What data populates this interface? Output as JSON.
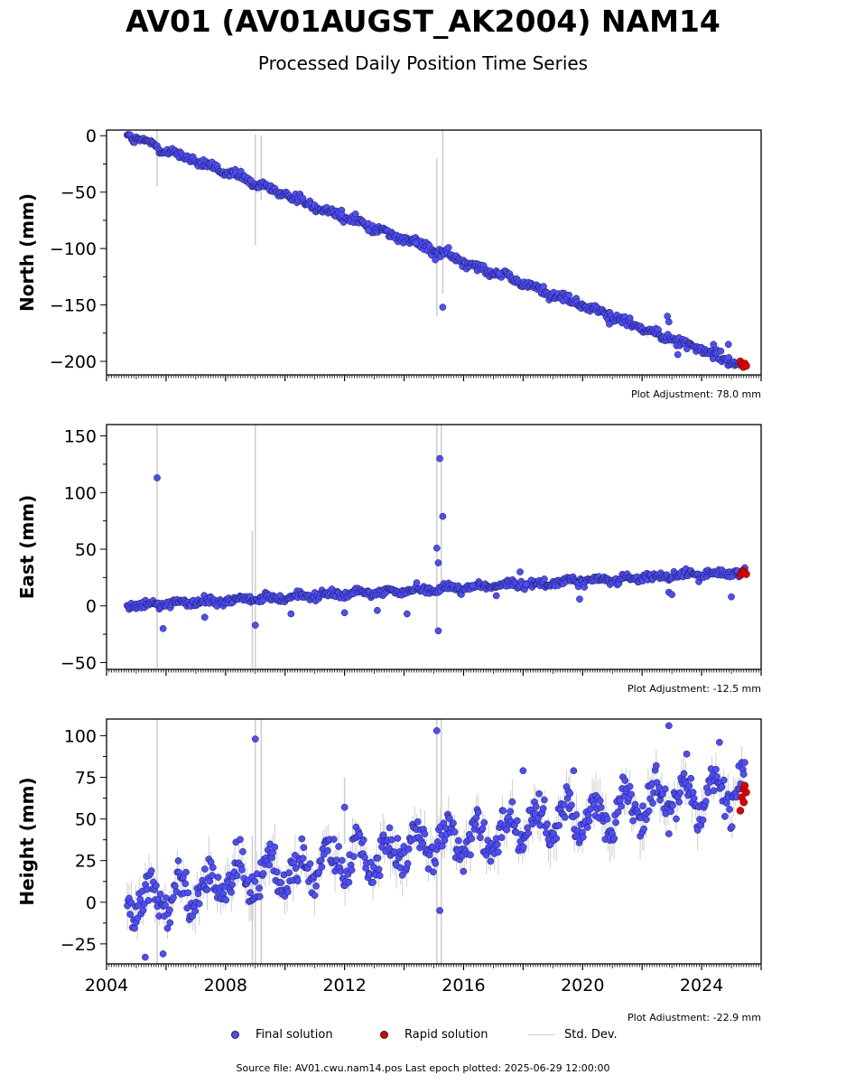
{
  "title": "AV01 (AV01AUGST_AK2004) NAM14",
  "subtitle": "Processed Daily Position Time Series",
  "legend": {
    "final": "Final solution",
    "rapid": "Rapid solution",
    "std": "Std. Dev."
  },
  "colors": {
    "final": "#4d4dff",
    "rapid": "#e00000",
    "std": "#cfcfcf",
    "edge": "#1a1a4a"
  },
  "footer": "Source file: AV01.cwu.nam14.pos  Last epoch plotted: 2025-06-29 12:00:00",
  "chart_data": [
    {
      "type": "scatter",
      "ylabel": "North (mm)",
      "adjustment": "Plot Adjustment: 78.0 mm",
      "xlim": [
        2004.0,
        2026.0
      ],
      "ylim": [
        -212,
        5
      ],
      "yticks": [
        0,
        -50,
        -100,
        -150,
        -200
      ],
      "start": [
        2004.7,
        0
      ],
      "end": [
        2025.45,
        -204
      ],
      "scatter_spread": 3,
      "seasonal_amplitude": 1.5,
      "outliers": [
        [
          2011.9,
          -66
        ],
        [
          2011.9,
          -70
        ],
        [
          2015.3,
          -152
        ],
        [
          2015.05,
          -110
        ],
        [
          2017.2,
          -122
        ],
        [
          2020.9,
          -167
        ],
        [
          2022.9,
          -165
        ],
        [
          2022.85,
          -160
        ],
        [
          2023.2,
          -194
        ],
        [
          2024.9,
          -185
        ],
        [
          2024.4,
          -185
        ],
        [
          2012.8,
          -84
        ],
        [
          2014.4,
          -95
        ]
      ],
      "stddev_spikes": [
        [
          2009.0,
          -97,
          1
        ],
        [
          2009.2,
          -57,
          0.5
        ],
        [
          2005.7,
          -45,
          8
        ],
        [
          2015.1,
          -160,
          -20
        ],
        [
          2015.3,
          -140,
          5
        ]
      ],
      "rapid": [
        [
          2025.3,
          -200
        ],
        [
          2025.35,
          -203
        ],
        [
          2025.4,
          -205
        ],
        [
          2025.45,
          -202
        ],
        [
          2025.5,
          -204
        ]
      ]
    },
    {
      "type": "scatter",
      "ylabel": "East (mm)",
      "adjustment": "Plot Adjustment: -12.5 mm",
      "xlim": [
        2004.0,
        2026.0
      ],
      "ylim": [
        -56,
        160
      ],
      "yticks": [
        150,
        100,
        50,
        0,
        -50
      ],
      "start": [
        2004.7,
        0
      ],
      "end": [
        2025.45,
        30
      ],
      "scatter_spread": 2.5,
      "seasonal_amplitude": 1.5,
      "outliers": [
        [
          2005.7,
          113
        ],
        [
          2015.2,
          130
        ],
        [
          2015.3,
          79
        ],
        [
          2015.1,
          51
        ],
        [
          2015.15,
          38
        ],
        [
          2015.15,
          -22
        ],
        [
          2009.0,
          -17
        ],
        [
          2005.9,
          -20
        ],
        [
          2012.0,
          -6
        ],
        [
          2013.1,
          -4
        ],
        [
          2014.1,
          -7
        ],
        [
          2017.1,
          9
        ],
        [
          2018.1,
          19
        ],
        [
          2019.9,
          6
        ],
        [
          2022.9,
          12
        ],
        [
          2023.0,
          10
        ],
        [
          2025.0,
          8
        ],
        [
          2007.3,
          -10
        ],
        [
          2010.2,
          -7
        ],
        [
          2017.9,
          30
        ],
        [
          2016.3,
          18
        ]
      ],
      "stddev_spikes": [
        [
          2005.7,
          160,
          -55
        ],
        [
          2009.0,
          160,
          -55
        ],
        [
          2008.9,
          66,
          -55
        ],
        [
          2015.1,
          160,
          -22
        ],
        [
          2015.25,
          160,
          20
        ]
      ],
      "rapid": [
        [
          2025.3,
          27
        ],
        [
          2025.35,
          29
        ],
        [
          2025.4,
          31
        ],
        [
          2025.45,
          30
        ],
        [
          2025.5,
          28
        ]
      ]
    },
    {
      "type": "scatter",
      "ylabel": "Height (mm)",
      "adjustment": "Plot Adjustment: -22.9 mm",
      "xlim": [
        2004.0,
        2026.0
      ],
      "ylim": [
        -37,
        110
      ],
      "yticks": [
        100,
        75,
        50,
        25,
        0,
        -25
      ],
      "xticks": [
        2004,
        2008,
        2012,
        2016,
        2020,
        2024
      ],
      "start": [
        2004.7,
        0
      ],
      "end": [
        2025.45,
        70
      ],
      "scatter_spread": 8,
      "seasonal_amplitude": 10,
      "outliers": [
        [
          2009.0,
          98
        ],
        [
          2015.1,
          103
        ],
        [
          2015.2,
          -5
        ],
        [
          2005.9,
          -31
        ],
        [
          2005.3,
          -33
        ],
        [
          2022.9,
          106
        ],
        [
          2012.0,
          57
        ],
        [
          2023.5,
          89
        ],
        [
          2024.6,
          96
        ],
        [
          2019.7,
          79
        ],
        [
          2018.0,
          79
        ]
      ],
      "stddev_spikes": [
        [
          2005.7,
          110,
          -37
        ],
        [
          2009.0,
          110,
          -37
        ],
        [
          2009.2,
          110,
          -37
        ],
        [
          2015.1,
          110,
          -37
        ],
        [
          2015.25,
          110,
          -37
        ],
        [
          2012.0,
          75,
          35
        ],
        [
          2008.9,
          40,
          -37
        ]
      ],
      "rapid": [
        [
          2025.3,
          55
        ],
        [
          2025.35,
          63
        ],
        [
          2025.4,
          68
        ],
        [
          2025.45,
          70
        ],
        [
          2025.5,
          66
        ],
        [
          2025.42,
          60
        ]
      ]
    }
  ]
}
